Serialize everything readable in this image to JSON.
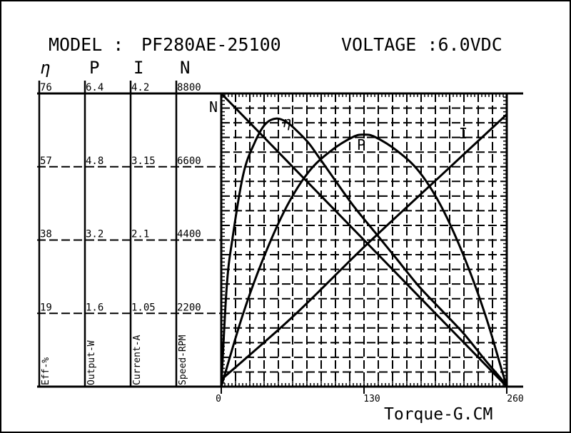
{
  "header": {
    "model_label": "MODEL :",
    "model_value": "PF280AE-25100",
    "voltage_label": "VOLTAGE :6.0VDC"
  },
  "axis_headers": [
    "η",
    "P",
    "I",
    "N"
  ],
  "left_scales": [
    {
      "key": "eff",
      "name": "Eff-%",
      "ticks": [
        "76",
        "57",
        "38",
        "19"
      ]
    },
    {
      "key": "output",
      "name": "Output-W",
      "ticks": [
        "6.4",
        "4.8",
        "3.2",
        "1.6"
      ]
    },
    {
      "key": "current",
      "name": "Current-A",
      "ticks": [
        "4.2",
        "3.15",
        "2.1",
        "1.05"
      ]
    },
    {
      "key": "speed",
      "name": "Speed-RPM",
      "ticks": [
        "8800",
        "6600",
        "4400",
        "2200"
      ]
    }
  ],
  "x_axis": {
    "label": "Torque-G.CM",
    "ticks": [
      "0",
      "130",
      "260"
    ]
  },
  "chart_data": {
    "type": "line",
    "x_unit": "G.CM",
    "xlim": [
      0,
      260
    ],
    "series": [
      {
        "name": "N",
        "label": "N",
        "unit": "RPM",
        "ylim": [
          0,
          8800
        ],
        "x": [
          0,
          65,
          130,
          195,
          260
        ],
        "y": [
          8800,
          6600,
          4400,
          2200,
          0
        ]
      },
      {
        "name": "I",
        "label": "I",
        "unit": "A",
        "ylim": [
          0,
          4.2
        ],
        "x": [
          0,
          65,
          130,
          195,
          260
        ],
        "y": [
          0.1,
          1.0,
          2.0,
          2.95,
          3.9
        ]
      },
      {
        "name": "η",
        "label": "η",
        "unit": "%",
        "ylim": [
          0,
          76
        ],
        "x": [
          0,
          5,
          10,
          20,
          30,
          40,
          50,
          60,
          70,
          80,
          90,
          100,
          120,
          140,
          160,
          180,
          200,
          220,
          240,
          255,
          260
        ],
        "y": [
          0,
          26,
          38,
          55,
          63,
          68,
          69.5,
          68.5,
          66,
          63,
          59,
          55,
          47,
          40,
          33,
          26,
          20,
          14,
          7,
          2,
          0
        ]
      },
      {
        "name": "P",
        "label": "P",
        "unit": "W",
        "ylim": [
          0,
          6.4
        ],
        "x": [
          0,
          20,
          40,
          60,
          80,
          100,
          120,
          130,
          140,
          160,
          180,
          200,
          220,
          240,
          255,
          260
        ],
        "y": [
          0,
          1.6,
          2.9,
          3.95,
          4.7,
          5.15,
          5.45,
          5.5,
          5.45,
          5.15,
          4.7,
          3.95,
          2.9,
          1.6,
          0.4,
          0
        ]
      }
    ]
  }
}
